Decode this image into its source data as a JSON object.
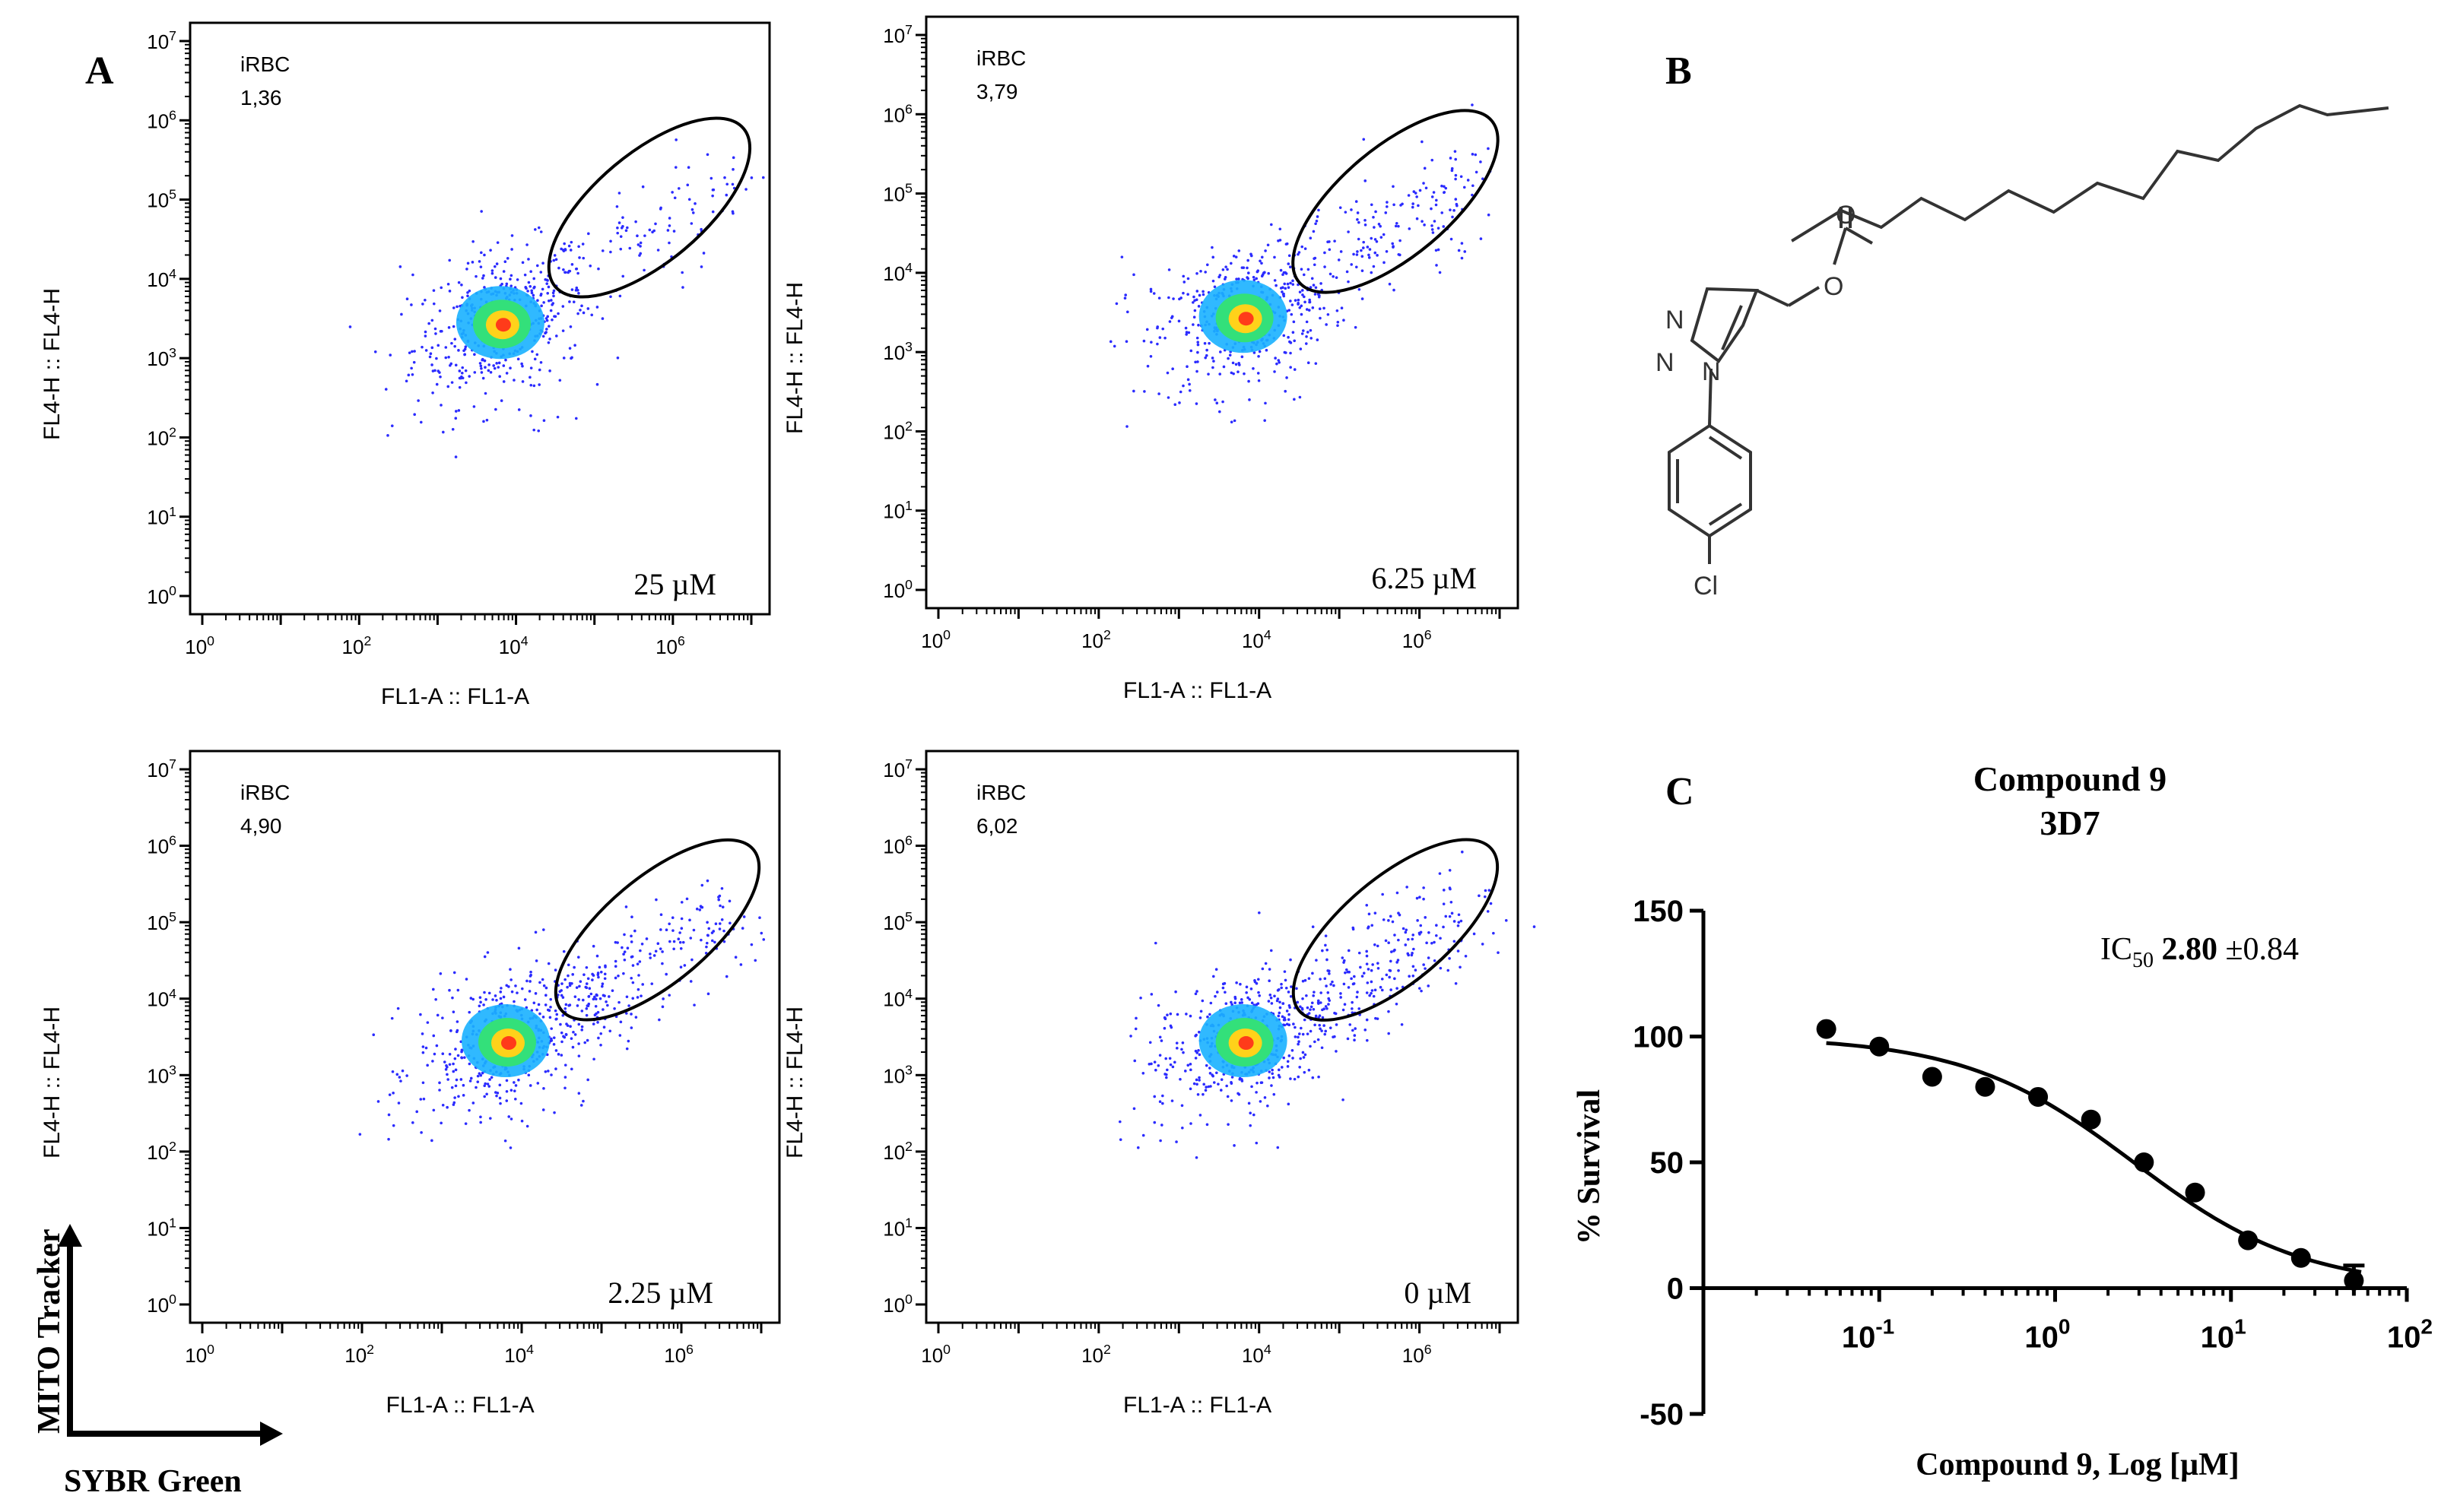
{
  "panel_letters": {
    "a": "A",
    "b": "B",
    "c": "C"
  },
  "axis_titles": {
    "x": "FL1-A :: FL1-A",
    "y": "FL4-H :: FL4-H"
  },
  "gate_label": "iRBC",
  "corner_axes": {
    "y": "MITO Tracker",
    "x": "SYBR Green"
  },
  "mu_unit": "µM",
  "flow_plots": [
    {
      "gate_pct": "1,36",
      "concentration": "25"
    },
    {
      "gate_pct": "3,79",
      "concentration": "6.25"
    },
    {
      "gate_pct": "4,90",
      "concentration": "2.25"
    },
    {
      "gate_pct": "6,02",
      "concentration": "0"
    }
  ],
  "structure": {
    "atoms": {
      "n1": "N",
      "n2": "N",
      "n3": "N",
      "o1": "O",
      "o2": "O",
      "cl": "Cl"
    }
  },
  "chart_data": [
    {
      "type": "scatter",
      "id": "flow-cytometry",
      "x_axis": {
        "label": "FL1-A :: FL1-A",
        "scale": "log10",
        "range_exp": [
          0,
          7
        ],
        "tick_labels": [
          "10^0",
          "10^2",
          "10^4",
          "10^6"
        ]
      },
      "y_axis": {
        "label": "FL4-H :: FL4-H",
        "scale": "log10",
        "range_exp": [
          0,
          7
        ],
        "tick_labels": [
          "10^0",
          "10^1",
          "10^2",
          "10^3",
          "10^4",
          "10^5",
          "10^6",
          "10^7"
        ]
      },
      "population_center_log": {
        "x": 3.8,
        "y": 3.45
      },
      "gate_ellipse_log": {
        "cx": 5.7,
        "cy": 4.9,
        "rx": 1.65,
        "ry": 0.55,
        "angle_deg": -40
      },
      "panels": [
        {
          "concentration": "25 µM",
          "gate_pct": 1.36
        },
        {
          "concentration": "6.25 µM",
          "gate_pct": 3.79
        },
        {
          "concentration": "2.25 µM",
          "gate_pct": 4.9
        },
        {
          "concentration": "0 µM",
          "gate_pct": 6.02
        }
      ]
    },
    {
      "type": "line",
      "id": "dose-response",
      "title": "Compound 9",
      "subtitle": "3D7",
      "xlabel": "Compound 9, Log [µM]",
      "ylabel": "% Survival",
      "x_scale": "log10",
      "xlim": [
        0.01,
        100
      ],
      "ylim": [
        -50,
        150
      ],
      "y_ticks": [
        -50,
        0,
        50,
        100,
        150
      ],
      "x_tick_exponents": [
        -1,
        0,
        1,
        2
      ],
      "ic50_label": "IC",
      "ic50_sub": "50",
      "ic50_value": "2.80",
      "ic50_error": "±0.84",
      "series": [
        {
          "name": "data",
          "x": [
            0.05,
            0.1,
            0.2,
            0.4,
            0.8,
            1.6,
            3.2,
            6.25,
            12.5,
            25,
            50
          ],
          "y": [
            103,
            96,
            84,
            80,
            76,
            67,
            50,
            38,
            19,
            12,
            3
          ]
        }
      ],
      "fit": {
        "model": "4PL",
        "bottom": 0,
        "top": 100,
        "ic50": 2.8,
        "hill": 0.9
      }
    }
  ]
}
